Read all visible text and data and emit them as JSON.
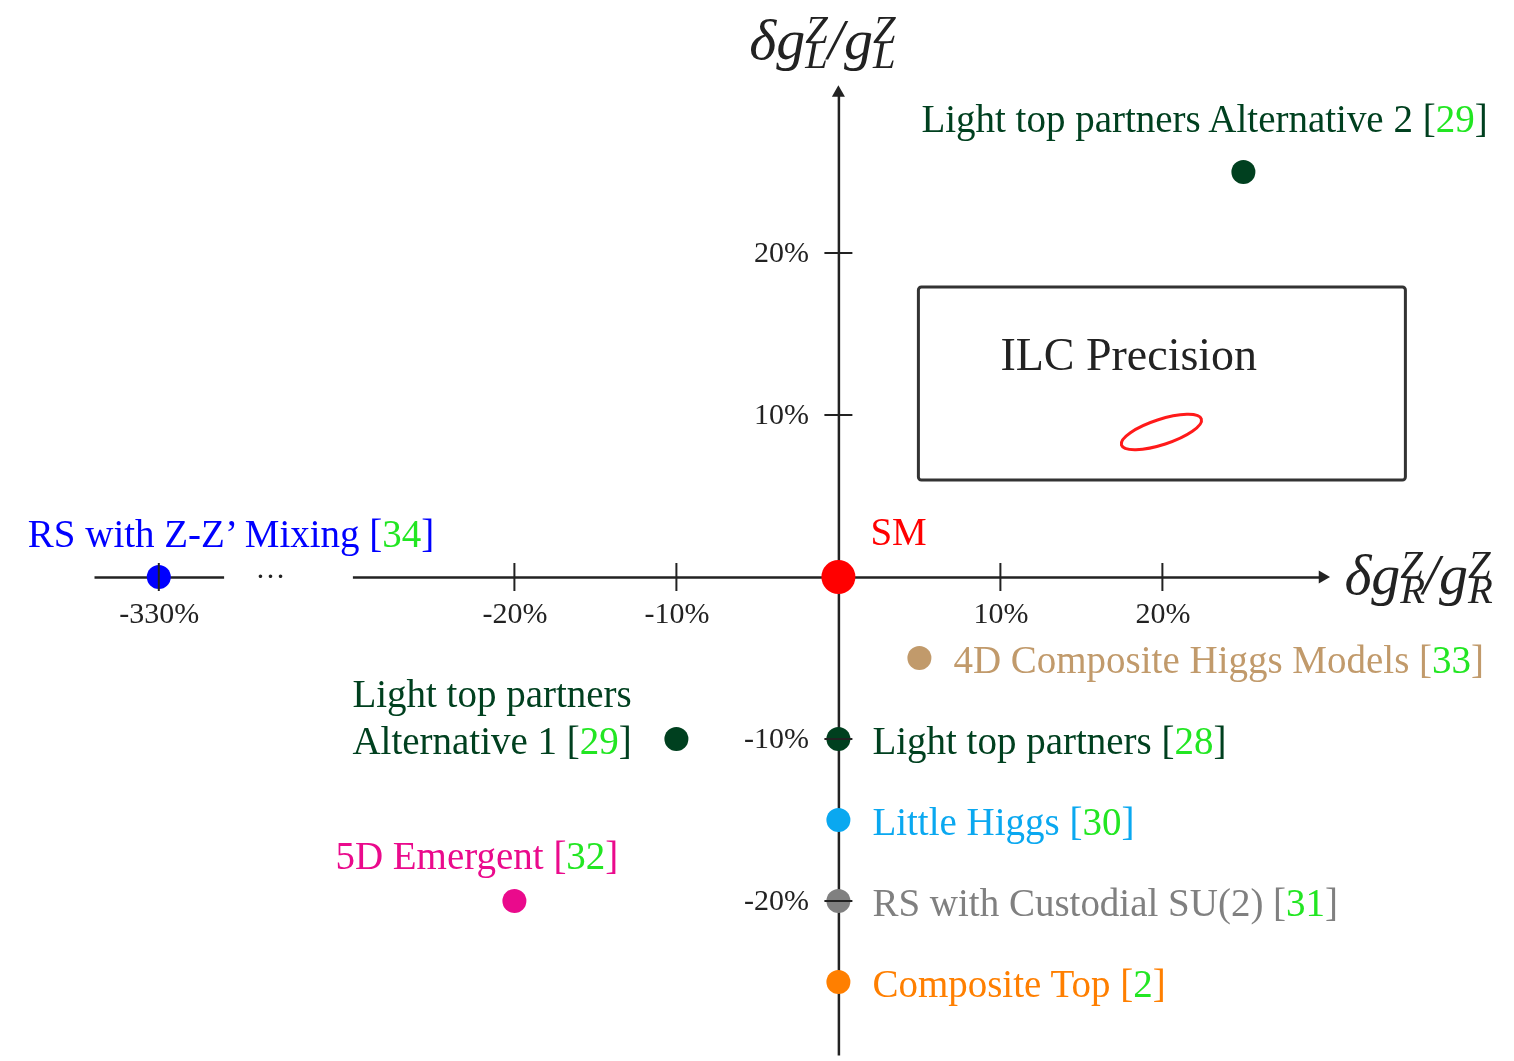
{
  "chart_data": [
    {
      "type": "scatter",
      "categories": [
        "-330%"
      ],
      "ylim": [
        -29.5,
        30
      ],
      "tick_labels": "x",
      "marker": "circle",
      "annotations": [
        "…"
      ],
      "series": [
        {
          "name": "RS with Z-Z’ Mixing [34]",
          "color": "#0000ff",
          "values": [
            0
          ]
        }
      ]
    },
    {
      "type": "scatter",
      "xlabel": "δg$_{R}$$^{Z}$/g$_{R}$$^{Z}$",
      "ylabel": "δg$_{L}$$^{Z}$/g$_{L}$$^{Z}$",
      "xlim": [
        -30,
        30
      ],
      "xticks": [
        {
          "value": -20,
          "label": "-20%"
        },
        {
          "value": -10,
          "label": "-10%"
        },
        {
          "value": 10,
          "label": "10%"
        },
        {
          "value": 20,
          "label": "20%"
        }
      ],
      "ylim": [
        -29.5,
        30
      ],
      "yticks": [
        {
          "value": -20,
          "label": "-20%"
        },
        {
          "value": -10,
          "label": "-10%"
        },
        {
          "value": 10,
          "label": "10%"
        },
        {
          "value": 20,
          "label": "20%"
        }
      ],
      "marker": "circle",
      "annotations": [
        "ILC Precision"
      ],
      "series": [
        {
          "name": "SM",
          "color": "#ff0000",
          "x": [
            0
          ],
          "values": [
            0
          ]
        },
        {
          "name": "Light top partners Alternative 2 [29]",
          "color": "#00401f",
          "x": [
            25
          ],
          "values": [
            25
          ]
        },
        {
          "name": "4D Composite Higgs Models [33]",
          "color": "#c19a6b",
          "x": [
            5
          ],
          "values": [
            -5
          ]
        },
        {
          "name": "Light top partners Alternative 1 [29]",
          "color": "#00401f",
          "x": [
            -10
          ],
          "values": [
            -10
          ]
        },
        {
          "name": "Light top partners [28]",
          "color": "#00401f",
          "x": [
            0
          ],
          "values": [
            -10
          ]
        },
        {
          "name": "Little Higgs [30]",
          "color": "#0aa8f0",
          "x": [
            0
          ],
          "values": [
            -15
          ]
        },
        {
          "name": "RS with Custodial SU(2) [31]",
          "color": "#808080",
          "x": [
            0
          ],
          "values": [
            -20
          ]
        },
        {
          "name": "Composite Top [2]",
          "color": "#ff7f00",
          "x": [
            0
          ],
          "values": [
            -25
          ]
        },
        {
          "name": "5D Emergent [32]",
          "color": "#ea0a8c",
          "x": [
            -20
          ],
          "values": [
            -20
          ]
        }
      ]
    }
  ]
}
